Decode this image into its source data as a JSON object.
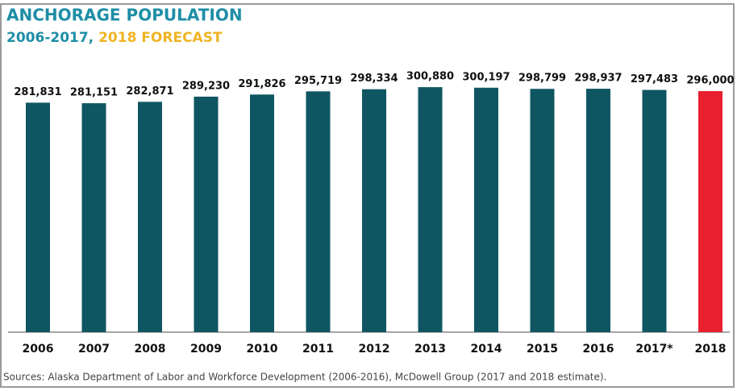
{
  "chart_data": {
    "type": "bar",
    "title": "ANCHORAGE POPULATION",
    "subtitle": [
      "2006-2017,",
      "2018 FORECAST"
    ],
    "source": "Sources: Alaska Department of Labor and Workforce Development (2006-2016), McDowell Group (2017 and 2018 estimate).",
    "categories": [
      "2006",
      "2007",
      "2008",
      "2009",
      "2010",
      "2011",
      "2012",
      "2013",
      "2014",
      "2015",
      "2016",
      "2017*",
      "2018"
    ],
    "values": [
      281831,
      281151,
      282871,
      289230,
      291826,
      295719,
      298334,
      300880,
      300197,
      298799,
      298937,
      297483,
      296000
    ],
    "value_labels": [
      "281,831",
      "281,151",
      "282,871",
      "289,230",
      "291,826",
      "295,719",
      "298,334",
      "300,880",
      "300,197",
      "298,799",
      "298,937",
      "297,483",
      "296,000"
    ],
    "colors": [
      "#0f5662",
      "#0f5662",
      "#0f5662",
      "#0f5662",
      "#0f5662",
      "#0f5662",
      "#0f5662",
      "#0f5662",
      "#0f5662",
      "#0f5662",
      "#0f5662",
      "#0f5662",
      "#e8202f"
    ],
    "ylim": [
      0,
      300000
    ]
  }
}
